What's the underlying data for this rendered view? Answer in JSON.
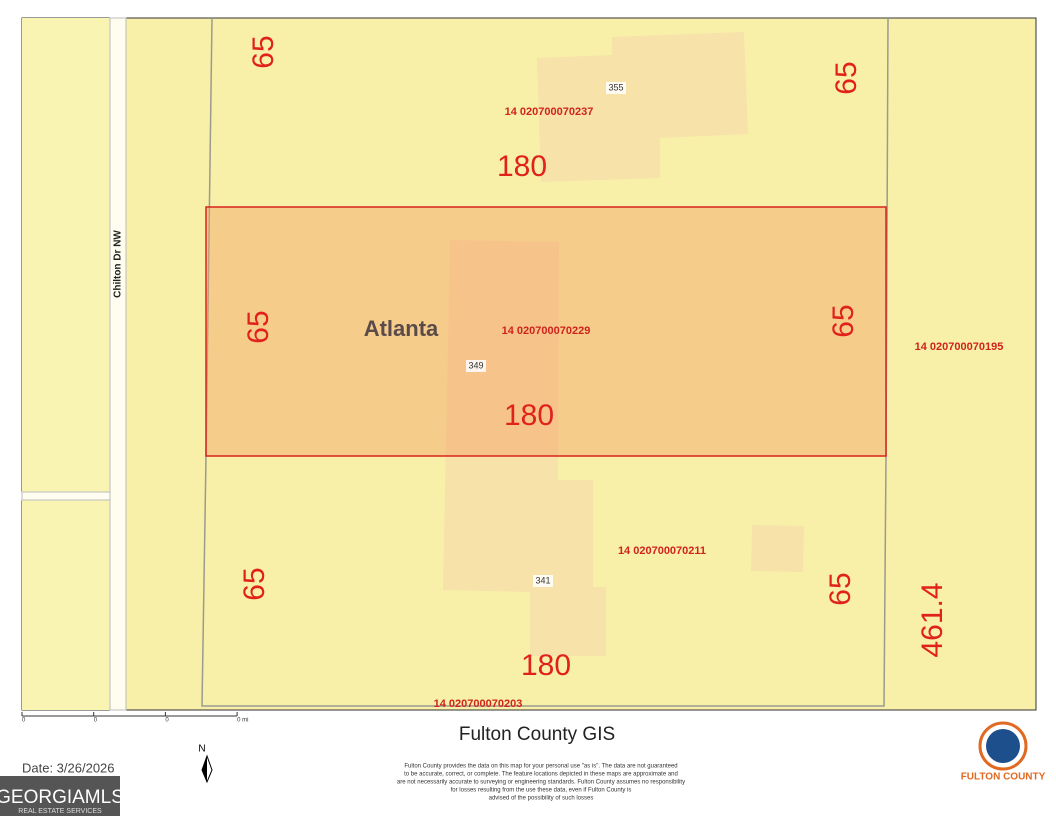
{
  "map": {
    "street": "Chilton Dr NW",
    "city": "Atlanta",
    "dimension_labels": [
      65,
      65,
      180,
      65,
      65,
      180,
      65,
      65,
      180,
      461.4
    ],
    "parcel_ids": [
      "14 020700070237",
      "14 020700070229",
      "14 020700070195",
      "14 020700070211",
      "14 020700070203"
    ],
    "addresses": [
      "355",
      "349",
      "341"
    ]
  },
  "footer": {
    "scale_labels": [
      "0",
      "0",
      "0",
      "0 mi"
    ],
    "north": "N",
    "title": "Fulton County GIS",
    "date": "Date: 3/26/2026",
    "disclaimer": [
      "Fulton County provides the data on this map for your personal use \"as is\". The data are not guaranteed",
      "to be accurate, correct, or complete. The feature locations depicted in these maps are approximate and",
      "are not necessarily accurate to surveying or engineering standards. Fulton County assumes no responsibility",
      "for losses resulting from the use these data, even if Fulton County is",
      "advised of the possibility of such losses"
    ],
    "mls_logo": "GEORGIAMLS",
    "mls_tagline": "REAL ESTATE SERVICES",
    "county_logo": "FULTON COUNTY"
  }
}
